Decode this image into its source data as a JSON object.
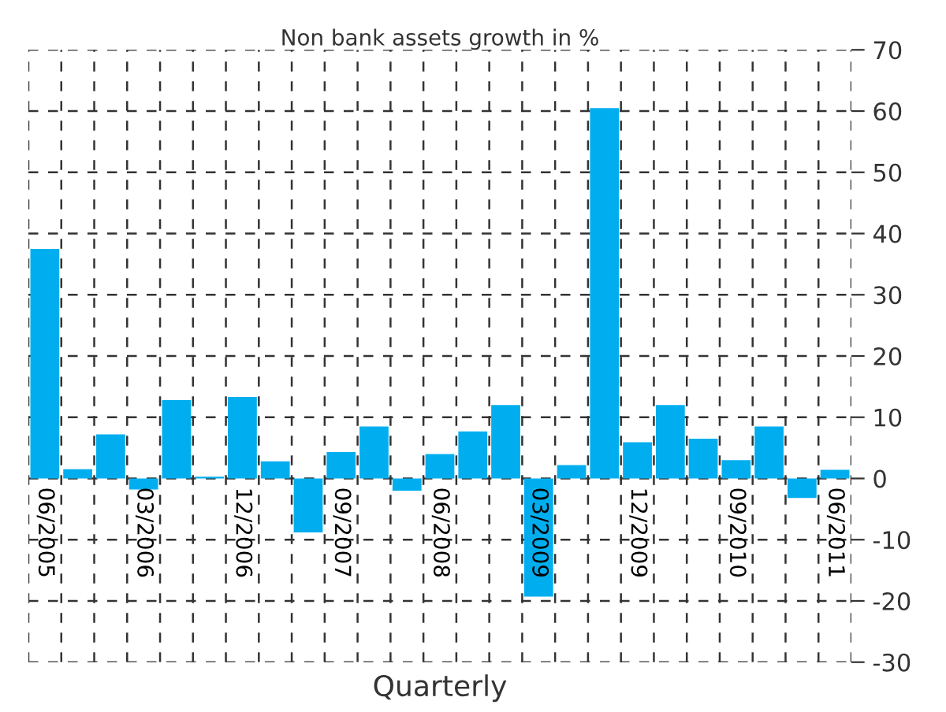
{
  "chart_data": {
    "type": "bar",
    "title": "Non bank assets growth in %",
    "xlabel": "Quarterly",
    "categories": [
      "06/2005",
      null,
      null,
      "03/2006",
      null,
      null,
      "12/2006",
      null,
      null,
      "09/2007",
      null,
      null,
      "06/2008",
      null,
      null,
      "03/2009",
      null,
      null,
      "12/2009",
      null,
      null,
      "09/2010",
      null,
      null,
      "06/2011"
    ],
    "values": [
      37.5,
      1.5,
      7.2,
      -1.8,
      12.8,
      0.3,
      13.3,
      2.8,
      -8.8,
      4.3,
      8.5,
      -2.0,
      4.0,
      7.7,
      12.0,
      -19.3,
      2.2,
      60.5,
      5.9,
      12.0,
      6.5,
      3.0,
      8.5,
      -3.2,
      1.4
    ],
    "color": "#00aeef",
    "ylim": [
      -30,
      70
    ],
    "yticks": [
      -30,
      -20,
      -10,
      0,
      10,
      20,
      30,
      40,
      50,
      60,
      70
    ],
    "grid": true
  }
}
